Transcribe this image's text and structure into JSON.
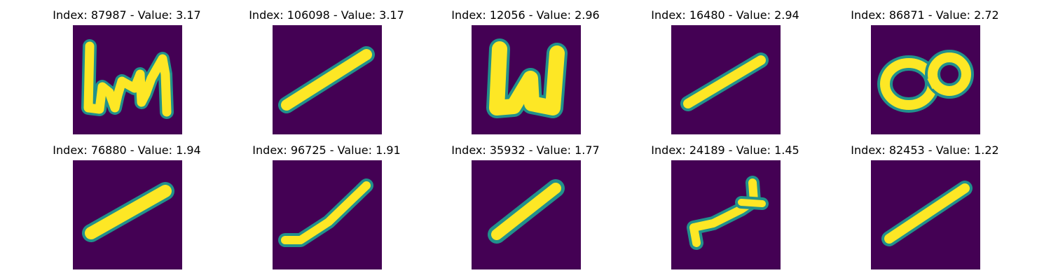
{
  "colors": {
    "background": "#440154",
    "mid": "#21918c",
    "foreground": "#fde725"
  },
  "panels": [
    {
      "title": "Index: 87987 - Value: 3.17",
      "glyph": "scribble-hn"
    },
    {
      "title": "Index: 106098 - Value: 3.17",
      "glyph": "diagonal-stroke"
    },
    {
      "title": "Index: 12056 - Value: 2.96",
      "glyph": "scribble-u"
    },
    {
      "title": "Index: 16480 - Value: 2.94",
      "glyph": "diagonal-stroke"
    },
    {
      "title": "Index: 86871 - Value: 2.72",
      "glyph": "loop-8"
    },
    {
      "title": "Index: 76880 - Value: 1.94",
      "glyph": "diagonal-stroke"
    },
    {
      "title": "Index: 96725 - Value: 1.91",
      "glyph": "diagonal-stroke"
    },
    {
      "title": "Index: 35932 - Value: 1.77",
      "glyph": "diagonal-stroke"
    },
    {
      "title": "Index: 24189 - Value: 1.45",
      "glyph": "hook-stroke"
    },
    {
      "title": "Index: 82453 - Value: 1.22",
      "glyph": "diagonal-stroke"
    }
  ]
}
